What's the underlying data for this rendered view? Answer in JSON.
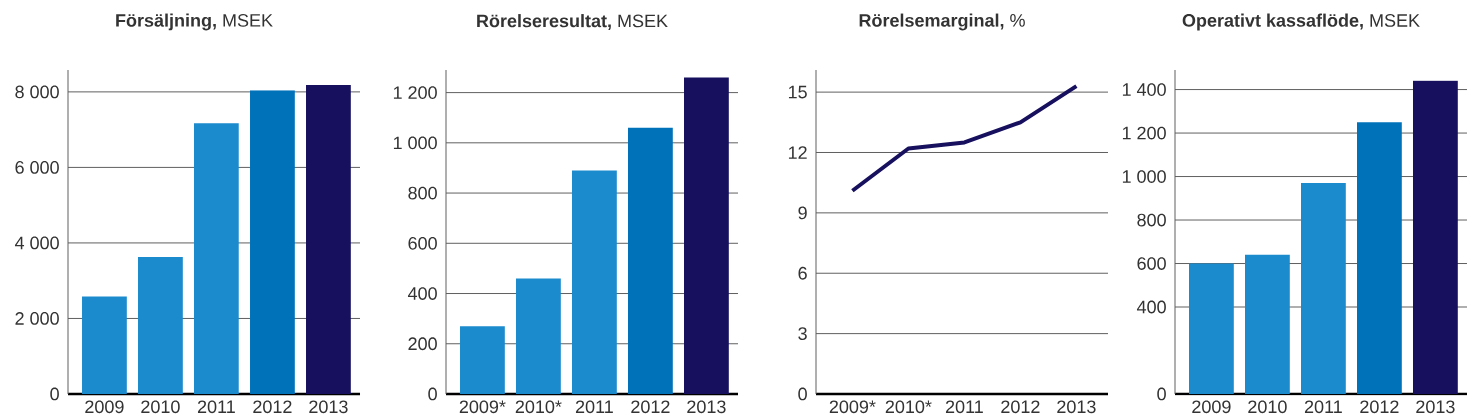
{
  "chart_data": [
    {
      "type": "bar",
      "title": "**Försäljning,** MSEK",
      "categories": [
        "2009",
        "2010",
        "2011",
        "2012",
        "2013"
      ],
      "values": [
        2580,
        3630,
        7170,
        8040,
        8180
      ],
      "colors": [
        "#1b8bcd",
        "#1b8bcd",
        "#1b8bcd",
        "#0072ba",
        "#16105e"
      ],
      "ylim": [
        0,
        8580
      ],
      "yticks": [
        0,
        {
          "value": 2000,
          "label": "2 000"
        },
        {
          "value": 4000,
          "label": "4 000"
        },
        {
          "value": 6000,
          "label": "6 000"
        },
        {
          "value": 8000,
          "label": "8 000"
        }
      ],
      "grid": "y"
    },
    {
      "type": "bar",
      "title": "**Rörelseresultat,** MSEK",
      "categories": [
        "2009*",
        "2010*",
        "2011",
        "2012",
        "2013"
      ],
      "values": [
        270,
        460,
        890,
        1060,
        1260
      ],
      "colors": [
        "#1b8bcd",
        "#1b8bcd",
        "#1b8bcd",
        "#0072ba",
        "#16105e"
      ],
      "ylim": [
        0,
        1290
      ],
      "yticks": [
        0,
        200,
        400,
        600,
        800,
        {
          "value": 1000,
          "label": "1 000"
        },
        {
          "value": 1200,
          "label": "1 200"
        }
      ],
      "grid": "y"
    },
    {
      "type": "line",
      "title": "**Rörelsemarginal,** %",
      "categories": [
        "2009*",
        "2010*",
        "2011",
        "2012",
        "2013"
      ],
      "values": [
        10.1,
        12.2,
        12.5,
        13.5,
        15.3
      ],
      "color": "#16105e",
      "ylim": [
        0,
        16.1
      ],
      "yticks": [
        0,
        3,
        6,
        9,
        12,
        15
      ],
      "grid": "y",
      "marker": "none",
      "line_style": "solid"
    },
    {
      "type": "bar",
      "title": "**Operativt kassaflöde,** MSEK",
      "categories": [
        "2009",
        "2010",
        "2011",
        "2012",
        "2013"
      ],
      "values": [
        600,
        640,
        970,
        1250,
        1440
      ],
      "colors": [
        "#1b8bcd",
        "#1b8bcd",
        "#1b8bcd",
        "#0072ba",
        "#16105e"
      ],
      "ylim": [
        0,
        1490
      ],
      "yticks": [
        0,
        400,
        600,
        800,
        {
          "value": 1000,
          "label": "1 000"
        },
        {
          "value": 1200,
          "label": "1 200"
        },
        {
          "value": 1400,
          "label": "1 400"
        }
      ],
      "grid": "y"
    }
  ]
}
